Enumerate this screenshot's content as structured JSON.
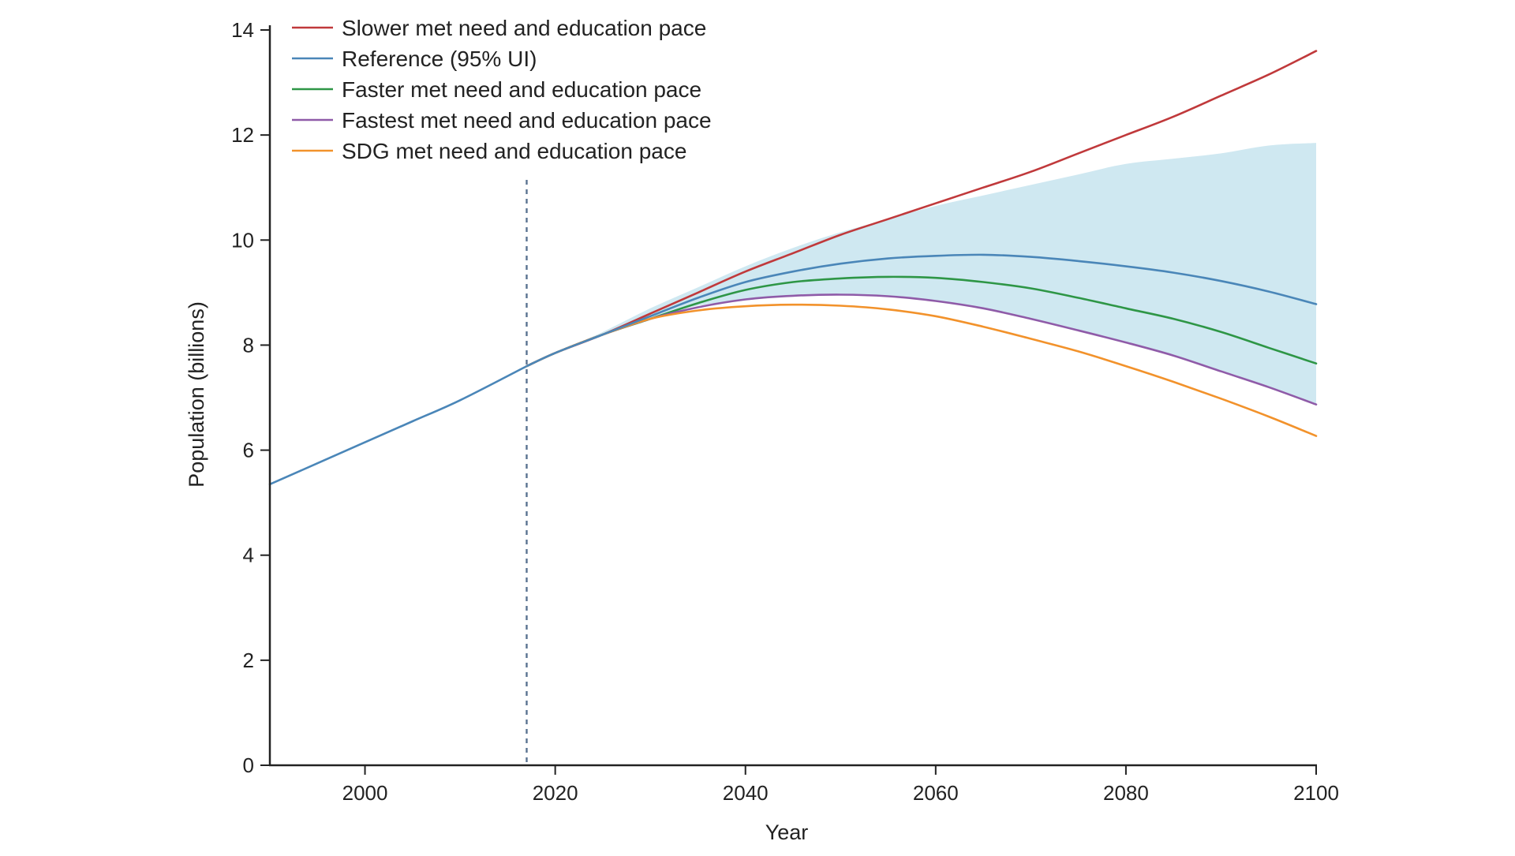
{
  "chart_data": {
    "type": "line",
    "title": "",
    "xlabel": "Year",
    "ylabel": "Population (billions)",
    "xlim": [
      1990,
      2100
    ],
    "ylim": [
      0,
      14
    ],
    "x_ticks": [
      2000,
      2020,
      2040,
      2060,
      2080,
      2100
    ],
    "y_ticks": [
      0,
      2,
      4,
      6,
      8,
      10,
      12,
      14
    ],
    "grid": false,
    "legend_position": "top-left",
    "forecast_start_year": 2017,
    "history": {
      "name": "",
      "color": "#4a86b8",
      "x": [
        1990,
        1995,
        2000,
        2005,
        2010,
        2017
      ],
      "values": [
        5.35,
        5.75,
        6.15,
        6.55,
        6.95,
        7.6
      ]
    },
    "series": [
      {
        "name": "Slower met need and education pace",
        "color": "#c0393b",
        "x": [
          2017,
          2020,
          2025,
          2030,
          2035,
          2040,
          2045,
          2050,
          2055,
          2060,
          2065,
          2070,
          2075,
          2080,
          2085,
          2090,
          2095,
          2100
        ],
        "values": [
          7.6,
          7.85,
          8.2,
          8.6,
          9.0,
          9.4,
          9.75,
          10.1,
          10.4,
          10.7,
          11.0,
          11.3,
          11.65,
          12.0,
          12.35,
          12.75,
          13.15,
          13.6
        ]
      },
      {
        "name": "Reference (95% UI)",
        "color": "#4a86b8",
        "x": [
          2017,
          2020,
          2025,
          2030,
          2035,
          2040,
          2045,
          2050,
          2055,
          2060,
          2065,
          2070,
          2075,
          2080,
          2085,
          2090,
          2095,
          2100
        ],
        "values": [
          7.6,
          7.85,
          8.2,
          8.55,
          8.9,
          9.2,
          9.4,
          9.55,
          9.65,
          9.7,
          9.72,
          9.68,
          9.6,
          9.5,
          9.38,
          9.22,
          9.02,
          8.78
        ],
        "lower": [
          7.6,
          7.85,
          8.2,
          8.5,
          8.75,
          8.85,
          8.93,
          8.95,
          8.92,
          8.85,
          8.7,
          8.5,
          8.28,
          8.05,
          7.8,
          7.5,
          7.2,
          6.85
        ],
        "upper": [
          7.6,
          7.85,
          8.25,
          8.7,
          9.1,
          9.5,
          9.85,
          10.15,
          10.4,
          10.65,
          10.85,
          11.05,
          11.25,
          11.45,
          11.55,
          11.65,
          11.8,
          11.85
        ]
      },
      {
        "name": "Faster met need and education pace",
        "color": "#2e9646",
        "x": [
          2017,
          2020,
          2025,
          2030,
          2035,
          2040,
          2045,
          2050,
          2055,
          2060,
          2065,
          2070,
          2075,
          2080,
          2085,
          2090,
          2095,
          2100
        ],
        "values": [
          7.6,
          7.85,
          8.2,
          8.5,
          8.8,
          9.05,
          9.2,
          9.27,
          9.3,
          9.28,
          9.2,
          9.08,
          8.9,
          8.7,
          8.5,
          8.25,
          7.95,
          7.65
        ]
      },
      {
        "name": "Fastest met need and education pace",
        "color": "#8f5ba8",
        "x": [
          2017,
          2020,
          2025,
          2030,
          2035,
          2040,
          2045,
          2050,
          2055,
          2060,
          2065,
          2070,
          2075,
          2080,
          2085,
          2090,
          2095,
          2100
        ],
        "values": [
          7.6,
          7.85,
          8.2,
          8.5,
          8.72,
          8.87,
          8.94,
          8.96,
          8.93,
          8.84,
          8.7,
          8.5,
          8.28,
          8.05,
          7.8,
          7.5,
          7.2,
          6.87
        ]
      },
      {
        "name": "SDG met need and education pace",
        "color": "#f2922b",
        "x": [
          2017,
          2020,
          2025,
          2030,
          2035,
          2040,
          2045,
          2050,
          2055,
          2060,
          2065,
          2070,
          2075,
          2080,
          2085,
          2090,
          2095,
          2100
        ],
        "values": [
          7.6,
          7.85,
          8.2,
          8.5,
          8.66,
          8.74,
          8.77,
          8.75,
          8.68,
          8.55,
          8.35,
          8.12,
          7.88,
          7.6,
          7.3,
          6.98,
          6.64,
          6.27
        ]
      }
    ],
    "band_color": "#cfe8f1"
  }
}
